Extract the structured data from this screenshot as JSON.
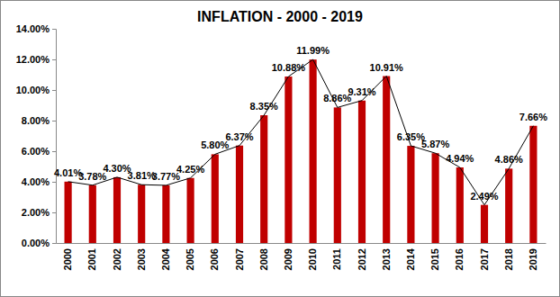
{
  "chart_data": {
    "type": "bar",
    "title": "INFLATION - 2000 - 2019",
    "categories": [
      "2000",
      "2001",
      "2002",
      "2003",
      "2004",
      "2005",
      "2006",
      "2007",
      "2008",
      "2009",
      "2010",
      "2011",
      "2012",
      "2013",
      "2014",
      "2015",
      "2016",
      "2017",
      "2018",
      "2019"
    ],
    "values": [
      4.01,
      3.78,
      4.3,
      3.81,
      3.77,
      4.25,
      5.8,
      6.37,
      8.35,
      10.88,
      11.99,
      8.86,
      9.31,
      10.91,
      6.35,
      5.87,
      4.94,
      2.49,
      4.86,
      7.66
    ],
    "value_labels": [
      "4.01%",
      "3.78%",
      "4.30%",
      "3.81%",
      "3.77%",
      "4.25%",
      "5.80%",
      "6.37%",
      "8.35%",
      "10.88%",
      "11.99%",
      "8.86%",
      "9.31%",
      "10.91%",
      "6.35%",
      "5.87%",
      "4.94%",
      "2.49%",
      "4.86%",
      "7.66%"
    ],
    "color": "#c00000",
    "line_style": "solid",
    "data_labels": true,
    "grid": false,
    "ylim": [
      0,
      14
    ],
    "yticks": [
      {
        "value": 0,
        "label": "0.00%"
      },
      {
        "value": 2,
        "label": "2.00%"
      },
      {
        "value": 4,
        "label": "4.00%"
      },
      {
        "value": 6,
        "label": "6.00%"
      },
      {
        "value": 8,
        "label": "8.00%"
      },
      {
        "value": 10,
        "label": "10.00%"
      },
      {
        "value": 12,
        "label": "12.00%"
      },
      {
        "value": 14,
        "label": "14.00%"
      }
    ]
  }
}
